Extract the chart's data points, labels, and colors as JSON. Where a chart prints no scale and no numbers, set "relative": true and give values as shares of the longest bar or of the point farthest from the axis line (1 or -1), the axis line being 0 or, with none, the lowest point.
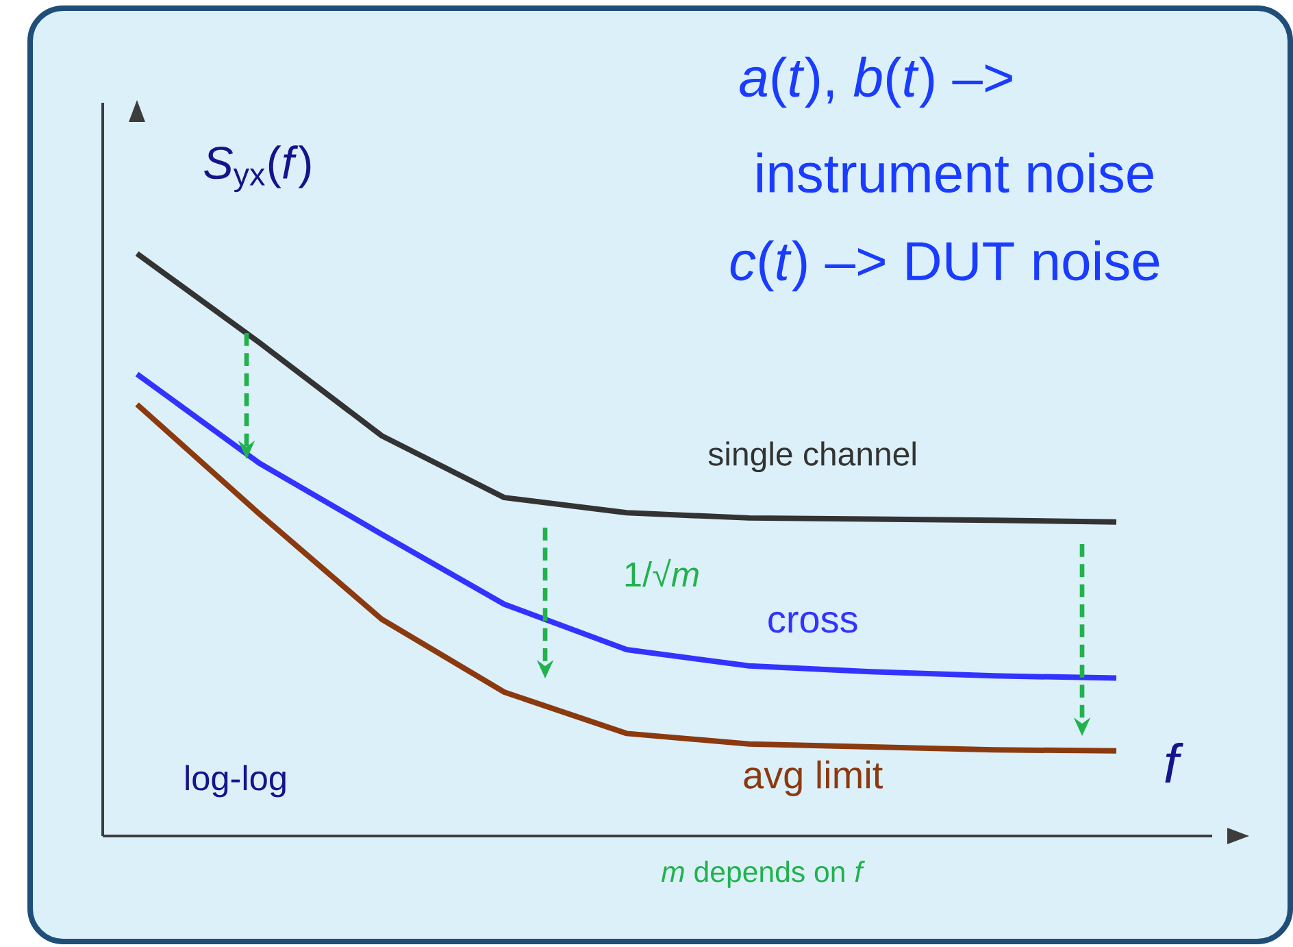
{
  "chart_data": {
    "type": "line",
    "relative": true,
    "ylabel": "*S*$_{yx}$(*f*)",
    "xlabel": "*f*",
    "categories": [
      null,
      null,
      null,
      null,
      null,
      null,
      null,
      null,
      null
    ],
    "series": [
      {
        "name": "single channel",
        "color": "#333333",
        "values": [
          1.0,
          0.847,
          0.687,
          0.581,
          0.555,
          0.546,
          0.544,
          0.542,
          0.539
        ]
      },
      {
        "name": "cross",
        "color": "#3333ff",
        "values": [
          0.793,
          0.64,
          0.518,
          0.398,
          0.32,
          0.292,
          0.282,
          0.275,
          0.271
        ]
      },
      {
        "name": "avg limit",
        "color": "#8b3a0f",
        "values": [
          0.741,
          0.553,
          0.372,
          0.247,
          0.176,
          0.158,
          0.153,
          0.148,
          0.146
        ]
      }
    ],
    "annotations": [
      "*a*(*t*), *b*(*t*) –>",
      "instrument noise",
      "*c*(*t*) –> DUT noise",
      "1/√*m*",
      "*m* depends on *f*",
      "log-log"
    ]
  }
}
